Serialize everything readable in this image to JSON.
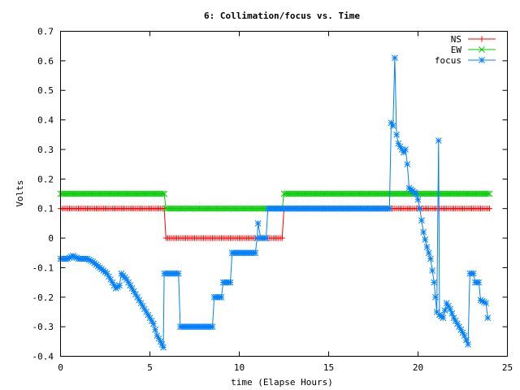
{
  "chart_data": {
    "type": "line",
    "title": "6: Collimation/focus vs. Time",
    "xlabel": "time (Elapse Hours)",
    "ylabel": "Volts",
    "xlim": [
      0,
      25
    ],
    "ylim": [
      -0.4,
      0.7
    ],
    "xticks": [
      0,
      5,
      10,
      15,
      20,
      25
    ],
    "xtick_labels": [
      "0",
      "5",
      "10",
      "15",
      "20",
      "25"
    ],
    "yticks": [
      -0.4,
      -0.3,
      -0.2,
      -0.1,
      0,
      0.1,
      0.2,
      0.3,
      0.4,
      0.5,
      0.6,
      0.7
    ],
    "ytick_labels": [
      "-0.4",
      "-0.3",
      "-0.2",
      "-0.1",
      "0",
      "0.1",
      "0.2",
      "0.3",
      "0.4",
      "0.5",
      "0.6",
      "0.7"
    ],
    "grid": false,
    "legend_position": "top-right",
    "series": [
      {
        "name": "NS",
        "color": "#ff0000",
        "marker": "plus",
        "points": [
          [
            0.0,
            0.1
          ],
          [
            5.8,
            0.1
          ],
          [
            5.9,
            0.0
          ],
          [
            12.4,
            0.0
          ],
          [
            12.5,
            0.1
          ],
          [
            24.0,
            0.1
          ]
        ]
      },
      {
        "name": "EW",
        "color": "#00cc00",
        "marker": "cross",
        "points": [
          [
            0.0,
            0.15
          ],
          [
            5.8,
            0.15
          ],
          [
            5.9,
            0.1
          ],
          [
            12.4,
            0.1
          ],
          [
            12.5,
            0.15
          ],
          [
            24.0,
            0.15
          ]
        ]
      },
      {
        "name": "focus",
        "color": "#0080ff",
        "marker": "star",
        "points": [
          [
            0.0,
            -0.07
          ],
          [
            0.4,
            -0.07
          ],
          [
            0.7,
            -0.06
          ],
          [
            1.0,
            -0.07
          ],
          [
            1.5,
            -0.07
          ],
          [
            1.8,
            -0.08
          ],
          [
            2.2,
            -0.1
          ],
          [
            2.6,
            -0.12
          ],
          [
            2.9,
            -0.15
          ],
          [
            3.1,
            -0.17
          ],
          [
            3.3,
            -0.16
          ],
          [
            3.4,
            -0.12
          ],
          [
            3.7,
            -0.14
          ],
          [
            4.0,
            -0.17
          ],
          [
            4.4,
            -0.21
          ],
          [
            4.8,
            -0.25
          ],
          [
            5.2,
            -0.29
          ],
          [
            5.4,
            -0.33
          ],
          [
            5.6,
            -0.35
          ],
          [
            5.75,
            -0.37
          ],
          [
            5.8,
            -0.12
          ],
          [
            6.6,
            -0.12
          ],
          [
            6.7,
            -0.3
          ],
          [
            8.5,
            -0.3
          ],
          [
            8.6,
            -0.2
          ],
          [
            9.0,
            -0.2
          ],
          [
            9.1,
            -0.15
          ],
          [
            9.5,
            -0.15
          ],
          [
            9.6,
            -0.05
          ],
          [
            10.9,
            -0.05
          ],
          [
            11.0,
            0.0
          ],
          [
            11.05,
            0.05
          ],
          [
            11.2,
            0.0
          ],
          [
            11.5,
            0.0
          ],
          [
            11.6,
            0.1
          ],
          [
            18.4,
            0.1
          ],
          [
            18.5,
            0.39
          ],
          [
            18.6,
            0.38
          ],
          [
            18.7,
            0.61
          ],
          [
            18.8,
            0.35
          ],
          [
            18.9,
            0.32
          ],
          [
            19.1,
            0.3
          ],
          [
            19.2,
            0.29
          ],
          [
            19.3,
            0.3
          ],
          [
            19.4,
            0.25
          ],
          [
            19.5,
            0.17
          ],
          [
            19.7,
            0.16
          ],
          [
            19.9,
            0.15
          ],
          [
            20.0,
            0.13
          ],
          [
            20.1,
            0.1
          ],
          [
            20.3,
            0.02
          ],
          [
            20.5,
            -0.03
          ],
          [
            20.7,
            -0.07
          ],
          [
            20.9,
            -0.15
          ],
          [
            21.05,
            -0.25
          ],
          [
            21.15,
            0.33
          ],
          [
            21.2,
            -0.26
          ],
          [
            21.4,
            -0.27
          ],
          [
            21.6,
            -0.22
          ],
          [
            21.8,
            -0.24
          ],
          [
            22.0,
            -0.27
          ],
          [
            22.2,
            -0.29
          ],
          [
            22.4,
            -0.31
          ],
          [
            22.6,
            -0.33
          ],
          [
            22.8,
            -0.36
          ],
          [
            22.9,
            -0.12
          ],
          [
            23.1,
            -0.12
          ],
          [
            23.2,
            -0.15
          ],
          [
            23.4,
            -0.15
          ],
          [
            23.5,
            -0.21
          ],
          [
            23.8,
            -0.22
          ],
          [
            23.9,
            -0.27
          ]
        ]
      }
    ]
  }
}
